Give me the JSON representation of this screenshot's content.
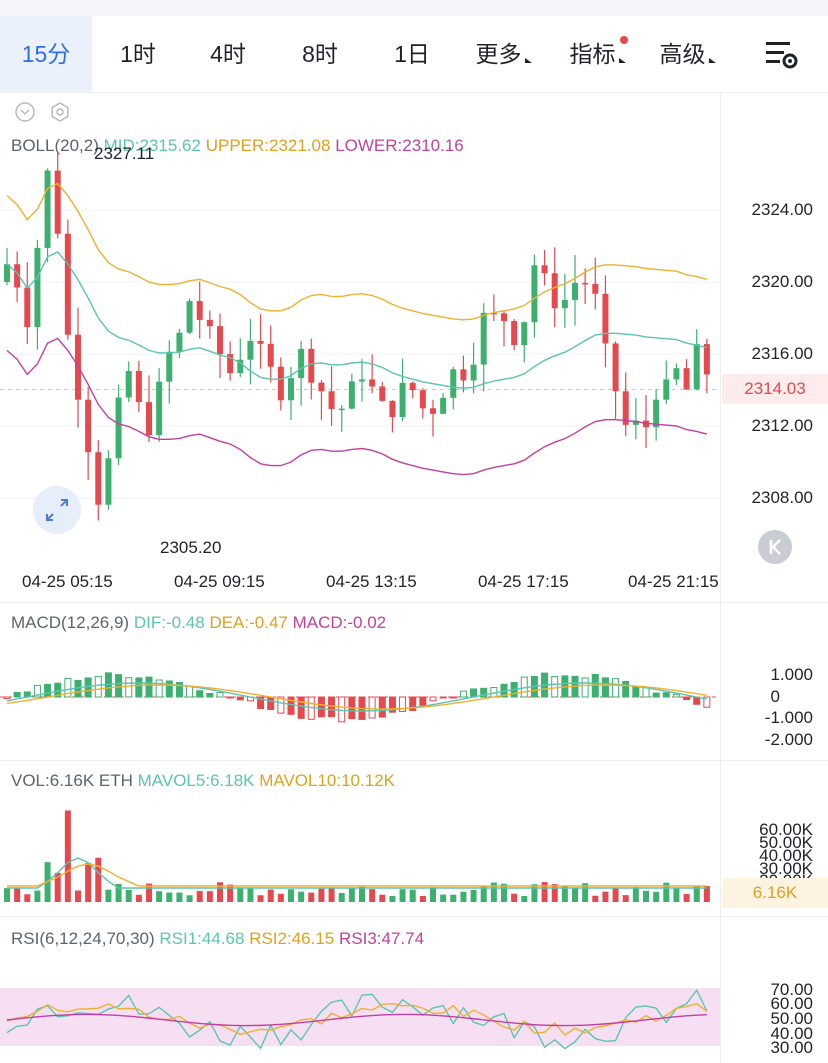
{
  "tabs": [
    {
      "label": "15分",
      "active": true
    },
    {
      "label": "1时"
    },
    {
      "label": "4时"
    },
    {
      "label": "8时"
    },
    {
      "label": "1日"
    },
    {
      "label": "更多",
      "dropdown": true
    },
    {
      "label": "指标",
      "dropdown": true,
      "dot": true
    },
    {
      "label": "高级",
      "dropdown": true
    }
  ],
  "icons": {
    "settings": "chart-settings-icon",
    "collapse": "chevron-down-icon",
    "gear": "gear-icon",
    "expand": "expand-icon",
    "back": "back-to-latest-icon"
  },
  "colors": {
    "up": "#3db070",
    "down": "#e5484d",
    "mid": "#5ac5b0",
    "upper": "#efb030",
    "lower": "#c2409f",
    "accent": "#2e6fe2",
    "rsi_band": "#f7dff3"
  },
  "boll": {
    "name": "BOLL(20,2)",
    "mid": "MID:2315.62",
    "upper": "UPPER:2321.08",
    "lower": "LOWER:2310.16",
    "high_label": "2327.11",
    "low_label": "2305.20",
    "current": "2314.03",
    "yaxis": [
      "2324.00",
      "2320.00",
      "2316.00",
      "2312.00",
      "2308.00"
    ]
  },
  "xaxis": [
    "04-25 05:15",
    "04-25 09:15",
    "04-25 13:15",
    "04-25 17:15",
    "04-25 21:15"
  ],
  "macd": {
    "name": "MACD(12,26,9)",
    "dif": "DIF:-0.48",
    "dea": "DEA:-0.47",
    "macd": "MACD:-0.02",
    "yaxis": [
      "1.000",
      "0",
      "-1.000",
      "-2.000"
    ]
  },
  "vol": {
    "name": "VOL:6.16K ETH",
    "ma5": "MAVOL5:6.18K",
    "ma10": "MAVOL10:10.12K",
    "yaxis": [
      "60.00K",
      "50.00K",
      "40.00K",
      "30.00K",
      "20.00K"
    ],
    "current": "6.16K"
  },
  "rsi": {
    "name": "RSI(6,12,24,70,30)",
    "rsi1": "RSI1:44.68",
    "rsi2": "RSI2:46.15",
    "rsi3": "RSI3:47.74",
    "yaxis": [
      "70.00",
      "60.00",
      "50.00",
      "40.00",
      "30.00"
    ]
  }
}
